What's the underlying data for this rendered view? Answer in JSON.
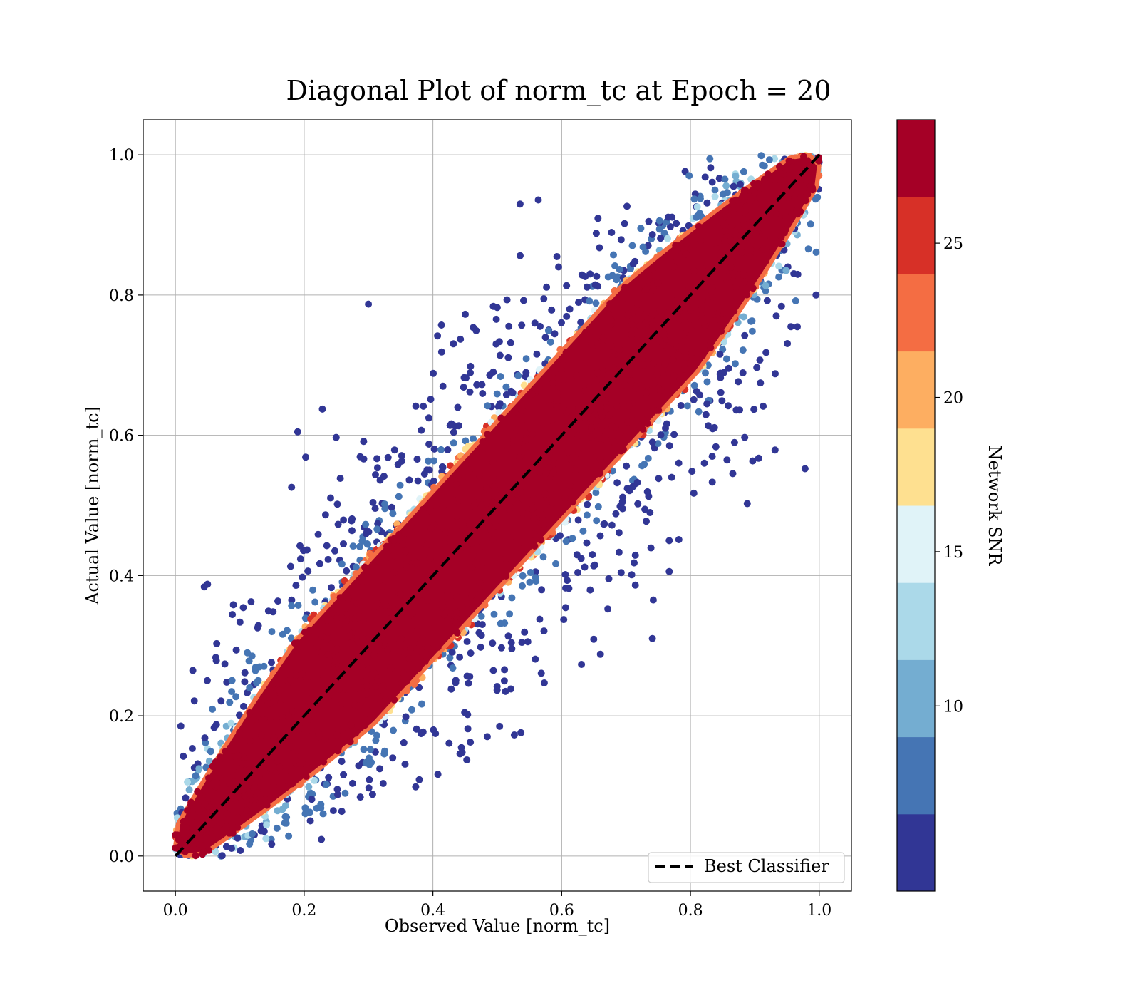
{
  "chart_data": {
    "type": "scatter",
    "title": "Diagonal Plot of norm_tc at Epoch = 20",
    "xlabel": "Observed Value [norm_tc]",
    "ylabel": "Actual Value [norm_tc]",
    "xlim": [
      -0.05,
      1.05
    ],
    "ylim": [
      -0.05,
      1.05
    ],
    "x_ticks": [
      "0.0",
      "0.2",
      "0.4",
      "0.6",
      "0.8",
      "1.0"
    ],
    "y_ticks": [
      "0.0",
      "0.2",
      "0.4",
      "0.6",
      "0.8",
      "1.0"
    ],
    "grid": true,
    "legend": {
      "placement": "lower-right",
      "entries": [
        "Best Classifier"
      ]
    },
    "reference_line": {
      "name": "Best Classifier",
      "style": "dashed",
      "color": "#000000",
      "x": [
        0,
        1
      ],
      "y": [
        0,
        1
      ]
    },
    "colorbar": {
      "label": "Network SNR",
      "range": [
        4,
        29
      ],
      "tick_values": [
        10,
        15,
        20,
        25
      ],
      "tick_labels": [
        "10",
        "15",
        "20",
        "25"
      ],
      "band_colors": [
        "#313695",
        "#4575b4",
        "#74add1",
        "#abd9e9",
        "#e0f3f8",
        "#fee090",
        "#fdae61",
        "#f46d43",
        "#d73027",
        "#a50026"
      ]
    },
    "point_summary": {
      "description_note": "",
      "high_snr_band_halfwidth": 0.12,
      "low_snr_scatter_extent": 0.6,
      "marker_color_high": "#a50026",
      "marker_color_low": "#313695"
    }
  }
}
